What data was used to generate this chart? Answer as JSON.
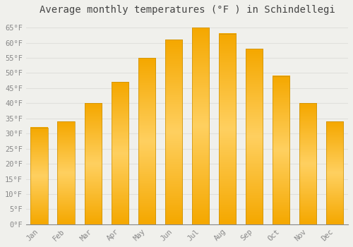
{
  "title": "Average monthly temperatures (°F ) in Schindellegi",
  "months": [
    "Jan",
    "Feb",
    "Mar",
    "Apr",
    "May",
    "Jun",
    "Jul",
    "Aug",
    "Sep",
    "Oct",
    "Nov",
    "Dec"
  ],
  "values": [
    32,
    34,
    40,
    47,
    55,
    61,
    65,
    63,
    58,
    49,
    40,
    34
  ],
  "bar_color_outer": "#F5A800",
  "bar_color_inner": "#FFD060",
  "bar_edge_color": "#C8900A",
  "ylim": [
    0,
    68
  ],
  "yticks": [
    0,
    5,
    10,
    15,
    20,
    25,
    30,
    35,
    40,
    45,
    50,
    55,
    60,
    65
  ],
  "ytick_labels": [
    "0°F",
    "5°F",
    "10°F",
    "15°F",
    "20°F",
    "25°F",
    "30°F",
    "35°F",
    "40°F",
    "45°F",
    "50°F",
    "55°F",
    "60°F",
    "65°F"
  ],
  "background_color": "#F0F0EC",
  "grid_color": "#E0E0DC",
  "title_fontsize": 10,
  "tick_fontsize": 7.5,
  "bar_width": 0.65,
  "font_family": "monospace"
}
